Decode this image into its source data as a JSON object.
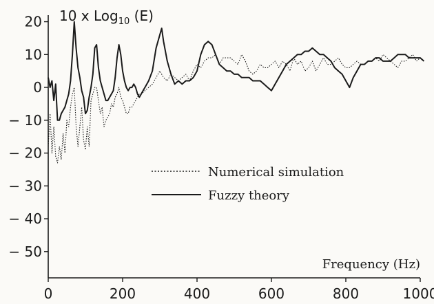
{
  "chart_data": {
    "type": "line",
    "title": "",
    "ylabel": {
      "prefix": "10 x Log",
      "sub": "10",
      "suffix": " (E)"
    },
    "xlabel": "Frequency (Hz)",
    "xlim": [
      0,
      1000
    ],
    "ylim": [
      -58,
      22
    ],
    "x_ticks": [
      0,
      200,
      400,
      600,
      800,
      1000
    ],
    "y_ticks": [
      20,
      10,
      0,
      -10,
      -20,
      -30,
      -40,
      -50
    ],
    "y_tick_labels": [
      "20",
      "10",
      "0",
      "− 10",
      "− 20",
      "− 30",
      "− 40",
      "− 50"
    ],
    "grid": false,
    "legend_position": "center",
    "series": [
      {
        "name": "Numerical simulation",
        "style": "dotted",
        "x": [
          0,
          5,
          10,
          15,
          20,
          25,
          30,
          35,
          40,
          45,
          50,
          55,
          60,
          65,
          70,
          75,
          80,
          85,
          90,
          95,
          100,
          105,
          110,
          115,
          120,
          125,
          130,
          135,
          140,
          145,
          150,
          155,
          160,
          165,
          170,
          175,
          180,
          185,
          190,
          195,
          200,
          205,
          210,
          215,
          220,
          225,
          230,
          235,
          240,
          245,
          250,
          260,
          270,
          280,
          290,
          300,
          310,
          320,
          330,
          340,
          350,
          360,
          370,
          380,
          390,
          400,
          410,
          420,
          430,
          440,
          450,
          460,
          470,
          480,
          490,
          500,
          510,
          520,
          530,
          540,
          550,
          560,
          570,
          580,
          590,
          600,
          610,
          620,
          630,
          640,
          650,
          660,
          670,
          680,
          690,
          700,
          710,
          720,
          730,
          740,
          750,
          760,
          770,
          780,
          790,
          800,
          810,
          820,
          830,
          840,
          850,
          860,
          870,
          880,
          890,
          900,
          910,
          920,
          930,
          940,
          950,
          960,
          970,
          980,
          990,
          1000,
          1010
        ],
        "y": [
          -18,
          -8,
          -20,
          -12,
          -21,
          -23,
          -18,
          -22,
          -14,
          -20,
          -10,
          -12,
          -6,
          -2,
          0,
          -12,
          -18,
          -12,
          -6,
          -16,
          -19,
          -12,
          -18,
          -4,
          -2,
          0,
          0,
          -4,
          -8,
          -6,
          -12,
          -10,
          -9,
          -8,
          -5,
          -6,
          -3,
          -2,
          0,
          -3,
          -4,
          -6,
          -8,
          -8,
          -6,
          -6,
          -5,
          -4,
          -3,
          -2,
          -2,
          -1,
          0,
          1,
          3,
          5,
          3,
          2,
          4,
          3,
          2,
          3,
          4,
          2,
          5,
          7,
          6,
          8,
          9,
          9,
          10,
          7,
          9,
          9,
          9,
          8,
          7,
          10,
          8,
          5,
          4,
          5,
          7,
          6,
          6,
          7,
          8,
          6,
          8,
          7,
          5,
          9,
          7,
          8,
          5,
          6,
          8,
          5,
          7,
          9,
          7,
          7,
          8,
          9,
          7,
          6,
          6,
          7,
          8,
          7,
          7,
          8,
          8,
          9,
          8,
          10,
          9,
          8,
          7,
          6,
          8,
          8,
          9,
          10,
          8,
          9,
          8
        ]
      },
      {
        "name": "Fuzzy theory",
        "style": "solid",
        "x": [
          0,
          5,
          10,
          15,
          20,
          25,
          30,
          35,
          40,
          45,
          50,
          55,
          60,
          65,
          70,
          75,
          80,
          85,
          90,
          95,
          100,
          105,
          110,
          115,
          120,
          125,
          130,
          135,
          140,
          145,
          150,
          155,
          160,
          165,
          170,
          175,
          180,
          185,
          190,
          195,
          200,
          205,
          210,
          215,
          220,
          225,
          230,
          235,
          240,
          245,
          250,
          255,
          260,
          270,
          280,
          290,
          300,
          305,
          310,
          320,
          330,
          340,
          350,
          360,
          370,
          380,
          390,
          400,
          410,
          420,
          430,
          440,
          450,
          460,
          470,
          480,
          490,
          500,
          510,
          520,
          530,
          540,
          550,
          560,
          570,
          580,
          590,
          600,
          610,
          620,
          630,
          640,
          650,
          660,
          670,
          680,
          690,
          700,
          710,
          720,
          730,
          740,
          750,
          760,
          770,
          780,
          790,
          800,
          810,
          820,
          830,
          840,
          850,
          860,
          870,
          880,
          890,
          900,
          910,
          920,
          930,
          940,
          950,
          960,
          970,
          980,
          990,
          1000,
          1010
        ],
        "y": [
          3,
          0,
          2,
          -4,
          1,
          -10,
          -10,
          -8,
          -7,
          -6,
          -4,
          -2,
          2,
          10,
          20,
          12,
          6,
          3,
          -1,
          -3,
          -8,
          -7,
          -3,
          0,
          4,
          12,
          13,
          6,
          2,
          0,
          -2,
          -4,
          -4,
          -3,
          -2,
          -1,
          3,
          9,
          13,
          10,
          5,
          2,
          0,
          -1,
          0,
          0,
          1,
          0,
          -2,
          -3,
          -2,
          -1,
          0,
          2,
          5,
          12,
          16,
          18,
          14,
          8,
          4,
          1,
          2,
          1,
          2,
          2,
          3,
          5,
          10,
          13,
          14,
          13,
          10,
          7,
          6,
          5,
          5,
          4,
          4,
          3,
          3,
          3,
          2,
          2,
          2,
          1,
          0,
          -1,
          1,
          3,
          5,
          7,
          8,
          9,
          10,
          10,
          11,
          11,
          12,
          11,
          10,
          10,
          9,
          8,
          6,
          5,
          4,
          2,
          0,
          3,
          5,
          7,
          7,
          8,
          8,
          9,
          9,
          8,
          8,
          8,
          9,
          10,
          10,
          10,
          9,
          9,
          9,
          9,
          8
        ]
      }
    ]
  },
  "legend": [
    {
      "label": "Numerical simulation",
      "style": "dotted"
    },
    {
      "label": "Fuzzy theory",
      "style": "solid"
    }
  ]
}
